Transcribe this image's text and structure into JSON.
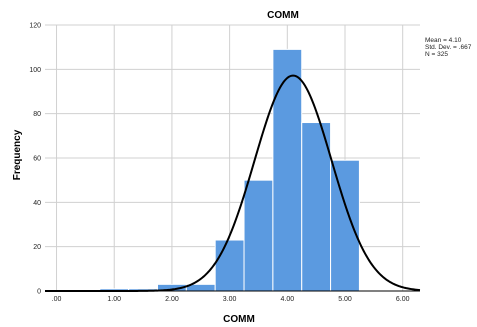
{
  "chart_data": {
    "type": "bar",
    "title": "COMM",
    "xlabel": "COMM",
    "ylabel": "Frequency",
    "xlim": [
      -0.2,
      6.3
    ],
    "ylim": [
      0,
      120
    ],
    "x_ticks": [
      ".00",
      "1.00",
      "2.00",
      "3.00",
      "4.00",
      "5.00",
      "6.00"
    ],
    "x_tick_values": [
      0,
      1,
      2,
      3,
      4,
      5,
      6
    ],
    "y_ticks": [
      0,
      20,
      40,
      60,
      80,
      100,
      120
    ],
    "grid": true,
    "bar_color": "#5b9ae0",
    "curve_color": "#000000",
    "bins": [
      {
        "start": 0.75,
        "end": 1.25,
        "value": 1
      },
      {
        "start": 1.25,
        "end": 1.75,
        "value": 1
      },
      {
        "start": 1.75,
        "end": 2.25,
        "value": 3
      },
      {
        "start": 2.25,
        "end": 2.75,
        "value": 3
      },
      {
        "start": 2.75,
        "end": 3.25,
        "value": 23
      },
      {
        "start": 3.25,
        "end": 3.75,
        "value": 50
      },
      {
        "start": 3.75,
        "end": 4.25,
        "value": 109
      },
      {
        "start": 4.25,
        "end": 4.75,
        "value": 76
      },
      {
        "start": 4.75,
        "end": 5.25,
        "value": 59
      }
    ],
    "normal_curve": {
      "mean": 4.1,
      "sd": 0.667,
      "n": 325,
      "bin_width": 0.5
    },
    "stats": {
      "mean_label": "Mean = 4.10",
      "sd_label": "Std. Dev. = .667",
      "n_label": "N = 325"
    },
    "stats_position": "top-right"
  }
}
